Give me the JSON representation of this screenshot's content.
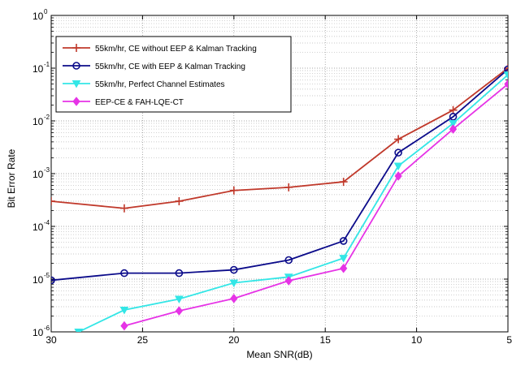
{
  "chart_data": {
    "type": "line",
    "title": "",
    "xlabel": "Mean SNR(dB)",
    "ylabel": "Bit Error Rate",
    "x_reversed": true,
    "xlim": [
      30,
      5
    ],
    "ylim": [
      1e-06,
      1
    ],
    "y_scale": "log",
    "grid": true,
    "legend_position": "top-left",
    "x_ticks": [
      30,
      25,
      20,
      15,
      10,
      5
    ],
    "y_tick_exponents": [
      0,
      -1,
      -2,
      -3,
      -4,
      -5,
      -6
    ],
    "series": [
      {
        "name": "55km/hr, CE without EEP & Kalman Tracking",
        "color": "#c0392b",
        "marker": "plus",
        "x": [
          30,
          26,
          23,
          20,
          17,
          14,
          11,
          8,
          5
        ],
        "y": [
          0.0003,
          0.00022,
          0.0003,
          0.00048,
          0.00055,
          0.0007,
          0.0045,
          0.016,
          0.1
        ]
      },
      {
        "name": "55km/hr, CE with EEP & Kalman Tracking",
        "color": "#0b0b8a",
        "marker": "circle",
        "x": [
          30,
          26,
          23,
          20,
          17,
          14,
          11,
          8,
          5
        ],
        "y": [
          9.5e-06,
          1.3e-05,
          1.3e-05,
          1.5e-05,
          2.3e-05,
          5.3e-05,
          0.0025,
          0.012,
          0.095
        ]
      },
      {
        "name": "55km/hr, Perfect Channel Estimates",
        "color": "#33e6e6",
        "marker": "triangle-down",
        "x": [
          28.5,
          26,
          23,
          20,
          17,
          14,
          11,
          8,
          5
        ],
        "y": [
          1e-06,
          2.6e-06,
          4.2e-06,
          8.5e-06,
          1.1e-05,
          2.5e-05,
          0.0014,
          0.009,
          0.075
        ]
      },
      {
        "name": "EEP-CE & FAH-LQE-CT",
        "color": "#e633e6",
        "marker": "diamond",
        "x": [
          26,
          23,
          20,
          17,
          14,
          11,
          8,
          5
        ],
        "y": [
          1.3e-06,
          2.5e-06,
          4.3e-06,
          9.3e-06,
          1.6e-05,
          0.0009,
          0.007,
          0.05
        ]
      }
    ]
  }
}
